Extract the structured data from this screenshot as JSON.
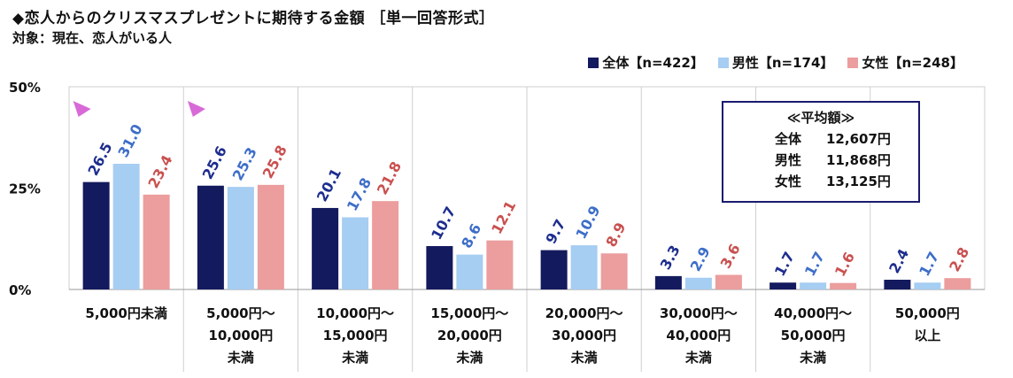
{
  "header": {
    "title": "◆恋人からのクリスマスプレゼントに期待する金額 ［単一回答形式］",
    "subject": "対象：現在、恋人がいる人"
  },
  "legend": [
    {
      "label": "全体【n=422】",
      "color": "#141a5e"
    },
    {
      "label": "男性【n=174】",
      "color": "#a6cdf2"
    },
    {
      "label": "女性【n=248】",
      "color": "#ec9d9d"
    }
  ],
  "average_box": {
    "title": "≪平均額≫",
    "rows": [
      {
        "label": "全体",
        "value": "12,607円"
      },
      {
        "label": "男性",
        "value": "11,868円"
      },
      {
        "label": "女性",
        "value": "13,125円"
      }
    ]
  },
  "label_colors": [
    "#1d2d8e",
    "#3d6ec9",
    "#c9504f"
  ],
  "marker_color": "#d86ad8",
  "chart_data": {
    "type": "bar",
    "ylim": [
      0,
      50
    ],
    "yticks": [
      {
        "value": 0,
        "label": "0%"
      },
      {
        "value": 25,
        "label": "25%"
      },
      {
        "value": 50,
        "label": "50%"
      }
    ],
    "categories": [
      [
        "5,000円未満"
      ],
      [
        "5,000円～",
        "10,000円",
        "未満"
      ],
      [
        "10,000円～",
        "15,000円",
        "未満"
      ],
      [
        "15,000円～",
        "20,000円",
        "未満"
      ],
      [
        "20,000円～",
        "30,000円",
        "未満"
      ],
      [
        "30,000円～",
        "40,000円",
        "未満"
      ],
      [
        "40,000円～",
        "50,000円",
        "未満"
      ],
      [
        "50,000円",
        "以上"
      ]
    ],
    "series": [
      {
        "name": "全体【n=422】",
        "values": [
          26.5,
          25.6,
          20.1,
          10.7,
          9.7,
          3.3,
          1.7,
          2.4
        ]
      },
      {
        "name": "男性【n=174】",
        "values": [
          31.0,
          25.3,
          17.8,
          8.6,
          10.9,
          2.9,
          1.7,
          1.7
        ]
      },
      {
        "name": "女性【n=248】",
        "values": [
          23.4,
          25.8,
          21.8,
          12.1,
          8.9,
          3.6,
          1.6,
          2.8
        ]
      }
    ],
    "markers": [
      0,
      1
    ],
    "grid": false,
    "legend_position": "top-right"
  }
}
